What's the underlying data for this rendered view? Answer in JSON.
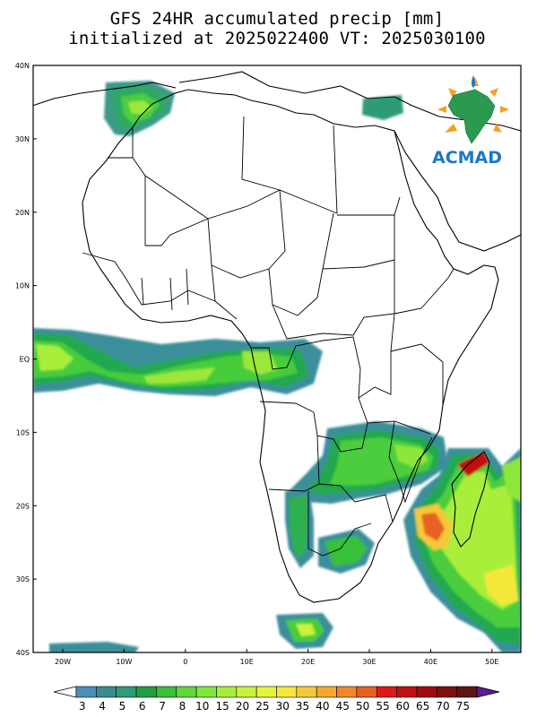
{
  "title_line1": "GFS 24HR accumulated precip [mm]",
  "title_line2": "initialized at 2025022400 VT: 2025030100",
  "logo": {
    "text": "ACMAD",
    "icon": "acmad-africa-sun-logo"
  },
  "lat_labels": [
    "40N",
    "30N",
    "20N",
    "10N",
    "EQ",
    "10S",
    "20S",
    "30S",
    "40S"
  ],
  "lon_labels": [
    "20W",
    "10W",
    "0",
    "10E",
    "20E",
    "30E",
    "40E",
    "50E"
  ],
  "colorbar": {
    "labels": [
      "3",
      "4",
      "5",
      "6",
      "7",
      "8",
      "10",
      "15",
      "20",
      "25",
      "30",
      "35",
      "40",
      "45",
      "50",
      "55",
      "60",
      "65",
      "70",
      "75"
    ],
    "colors": [
      "#4a8fb8",
      "#3b8a8f",
      "#2e9a78",
      "#20a040",
      "#38c038",
      "#5ed83a",
      "#7fe83a",
      "#a6ee3a",
      "#c8f23a",
      "#e6f53a",
      "#f5e83a",
      "#f5c83a",
      "#f5a830",
      "#f08828",
      "#e86020",
      "#e01818",
      "#c01010",
      "#a00c0c",
      "#801010",
      "#601414",
      "#5a1a9a"
    ],
    "low_color": "#ffffff",
    "high_color": "#5a1a9a"
  },
  "colors": {
    "frame": "#000000",
    "ocean": "#ffffff",
    "land_border": "#000000"
  }
}
